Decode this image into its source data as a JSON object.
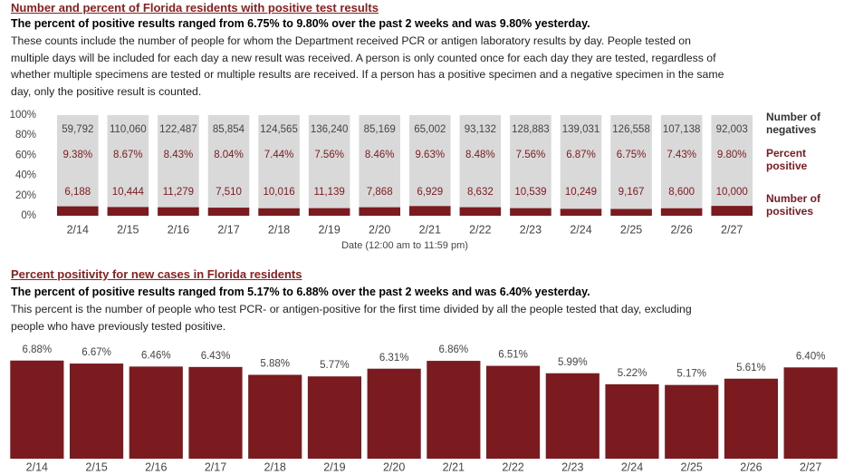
{
  "chart_data": [
    {
      "type": "stacked100",
      "title": "Number and percent of Florida residents with positive test results",
      "subtitle": "The percent of positive results ranged from 6.75% to 9.80% over the past 2 weeks and was 9.80% yesterday.",
      "note": "These counts include the number of people for whom the Department received PCR or antigen laboratory results by day. People tested on multiple days will be included for each day a new result was received. A person is only counted once for each day they are tested, regardless of whether multiple specimens are tested or multiple results are received. If a person has a positive specimen and a negative specimen in the same day, only the positive result is counted.",
      "xlabel": "Date (12:00 am to 11:59 pm)",
      "categories": [
        "2/14",
        "2/15",
        "2/16",
        "2/17",
        "2/18",
        "2/19",
        "2/20",
        "2/21",
        "2/22",
        "2/23",
        "2/24",
        "2/25",
        "2/26",
        "2/27"
      ],
      "series": [
        {
          "name": "Number of negatives",
          "color": "#d9d9d9",
          "values": [
            59792,
            110060,
            122487,
            85854,
            124565,
            136240,
            85169,
            65002,
            93132,
            128883,
            139031,
            126558,
            107138,
            92003
          ],
          "value_labels": [
            "59,792",
            "110,060",
            "122,487",
            "85,854",
            "124,565",
            "136,240",
            "85,169",
            "65,002",
            "93,132",
            "128,883",
            "139,031",
            "126,558",
            "107,138",
            "92,003"
          ]
        },
        {
          "name": "Percent positive",
          "color": "#7b1a1f",
          "values": [
            9.38,
            8.67,
            8.43,
            8.04,
            7.44,
            7.56,
            8.46,
            9.63,
            8.48,
            7.56,
            6.87,
            6.75,
            7.43,
            9.8
          ],
          "value_labels": [
            "9.38%",
            "8.67%",
            "8.43%",
            "8.04%",
            "7.44%",
            "7.56%",
            "8.46%",
            "9.63%",
            "8.48%",
            "7.56%",
            "6.87%",
            "6.75%",
            "7.43%",
            "9.80%"
          ]
        },
        {
          "name": "Number of positives",
          "color": "#7b1a1f",
          "values": [
            6188,
            10444,
            11279,
            7510,
            10016,
            11139,
            7868,
            6929,
            8632,
            10539,
            10249,
            9167,
            8600,
            10000
          ],
          "value_labels": [
            "6,188",
            "10,444",
            "11,279",
            "7,510",
            "10,016",
            "11,139",
            "7,868",
            "6,929",
            "8,632",
            "10,539",
            "10,249",
            "9,167",
            "8,600",
            "10,000"
          ]
        }
      ],
      "ylim": [
        0,
        100
      ],
      "yticks": [
        {
          "value": 0,
          "label": "0%"
        },
        {
          "value": 20,
          "label": "20%"
        },
        {
          "value": 40,
          "label": "40%"
        },
        {
          "value": 60,
          "label": "60%"
        },
        {
          "value": 80,
          "label": "80%"
        },
        {
          "value": 100,
          "label": "100%"
        }
      ]
    },
    {
      "type": "bar",
      "title": "Percent positivity for new cases in Florida residents",
      "subtitle": "The percent of positive results ranged from 5.17% to 6.88% over the past 2 weeks and was 6.40% yesterday.",
      "note": "This percent is the number of people who test PCR- or antigen-positive for the first time divided by all the people tested that day, excluding people who have previously tested positive.",
      "categories": [
        "2/14",
        "2/15",
        "2/16",
        "2/17",
        "2/18",
        "2/19",
        "2/20",
        "2/21",
        "2/22",
        "2/23",
        "2/24",
        "2/25",
        "2/26",
        "2/27"
      ],
      "values": [
        6.88,
        6.67,
        6.46,
        6.43,
        5.88,
        5.77,
        6.31,
        6.86,
        6.51,
        5.99,
        5.22,
        5.17,
        5.61,
        6.4
      ],
      "value_labels": [
        "6.88%",
        "6.67%",
        "6.46%",
        "6.43%",
        "5.88%",
        "5.77%",
        "6.31%",
        "6.86%",
        "6.51%",
        "5.99%",
        "5.22%",
        "5.17%",
        "5.61%",
        "6.40%"
      ],
      "color": "#7b1a1f",
      "ylim": [
        0,
        7.5
      ]
    }
  ]
}
